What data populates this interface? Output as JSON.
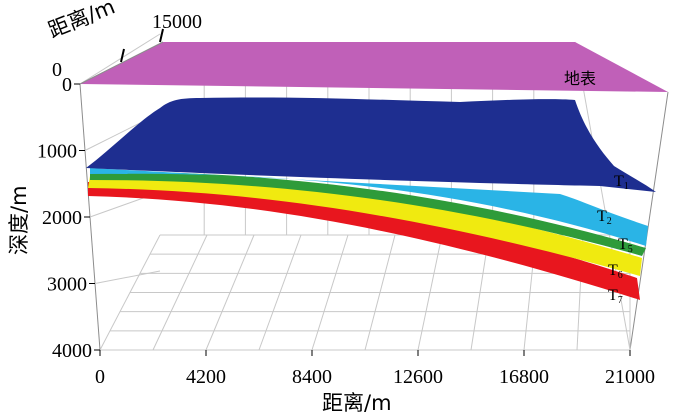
{
  "chart_data": {
    "type": "3d-surface",
    "title": "",
    "xlabel": "距离/m",
    "ylabel": "深度/m",
    "zlabel": "距离/m",
    "x_ticks": [
      "0",
      "4200",
      "8400",
      "12600",
      "16800",
      "21000"
    ],
    "y_ticks": [
      "0",
      "1000",
      "2000",
      "3000",
      "4000"
    ],
    "back_axis_ticks": [
      "0",
      "15000"
    ],
    "xlim": [
      0,
      21000
    ],
    "ylim": [
      0,
      4000
    ],
    "grid": true,
    "surfaces": [
      {
        "name": "地表",
        "main": "地表",
        "sub": "",
        "color": "#c060b8",
        "depth_left": 0,
        "depth_right": 0
      },
      {
        "name": "T1",
        "main": "T",
        "sub": "1",
        "color": "#1e2e90",
        "depth_left": 1450,
        "depth_right": 1750
      },
      {
        "name": "T2",
        "main": "T",
        "sub": "2",
        "color": "#2ab4e6",
        "depth_left": 1550,
        "depth_right": 2300
      },
      {
        "name": "T5",
        "main": "T",
        "sub": "5",
        "color": "#2e9b3a",
        "depth_left": 1700,
        "depth_right": 2600
      },
      {
        "name": "T6",
        "main": "T",
        "sub": "6",
        "color": "#f0ea10",
        "depth_left": 1800,
        "depth_right": 2800
      },
      {
        "name": "T7",
        "main": "T",
        "sub": "7",
        "color": "#e8161e",
        "depth_left": 1900,
        "depth_right": 3100
      }
    ]
  }
}
